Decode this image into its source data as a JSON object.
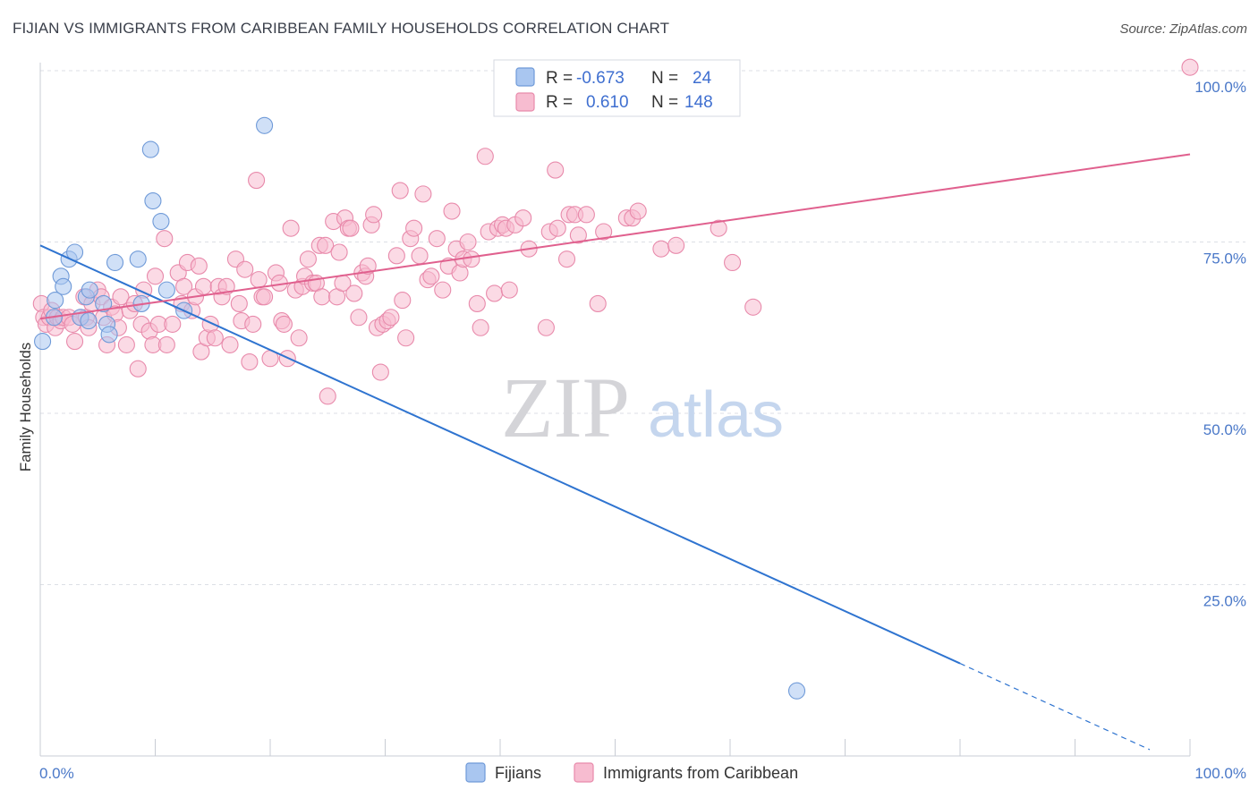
{
  "title": "FIJIAN VS IMMIGRANTS FROM CARIBBEAN FAMILY HOUSEHOLDS CORRELATION CHART",
  "source": "Source: ZipAtlas.com",
  "watermark": {
    "zip": "ZIP",
    "atlas": "atlas"
  },
  "legend_top": {
    "r_label": "R =",
    "n_label": "N =",
    "entries": [
      {
        "r": "-0.673",
        "n": "24",
        "color": "#a9c6f0"
      },
      {
        "r": "0.610",
        "n": "148",
        "color": "#f7bcd0"
      }
    ]
  },
  "chart_data": {
    "type": "scatter",
    "xlabel": "",
    "ylabel": "Family Households",
    "xlim": [
      0,
      100
    ],
    "ylim": [
      0,
      103
    ],
    "x_tick_labels": [
      "0.0%",
      "100.0%"
    ],
    "y_ticks": [
      25,
      50,
      75,
      100
    ],
    "y_tick_labels": [
      "25.0%",
      "50.0%",
      "75.0%",
      "100.0%"
    ],
    "grid": true,
    "legend_position": "bottom",
    "series": [
      {
        "name": "Fijians",
        "color": "#a9c6f0",
        "stroke": "#6f9ad8",
        "line_color": "#2f74d0",
        "trend": {
          "x0": 0,
          "y0": 74.5,
          "x1": 80,
          "y1": 13.5,
          "dash_to_x": 96.5
        },
        "points": [
          [
            0.2,
            60.5
          ],
          [
            1.2,
            64
          ],
          [
            1.3,
            66.5
          ],
          [
            1.8,
            70
          ],
          [
            2.0,
            68.5
          ],
          [
            2.5,
            72.5
          ],
          [
            3.0,
            73.5
          ],
          [
            3.5,
            64
          ],
          [
            4.0,
            67
          ],
          [
            4.2,
            63.5
          ],
          [
            4.3,
            68
          ],
          [
            5.5,
            66
          ],
          [
            5.8,
            63
          ],
          [
            6.0,
            61.5
          ],
          [
            6.5,
            72
          ],
          [
            8.5,
            72.5
          ],
          [
            8.8,
            66
          ],
          [
            9.6,
            88.5
          ],
          [
            9.8,
            81
          ],
          [
            10.5,
            78
          ],
          [
            11.0,
            68
          ],
          [
            12.5,
            65
          ],
          [
            19.5,
            92
          ],
          [
            65.8,
            9.5
          ]
        ]
      },
      {
        "name": "Immigrants from Caribbean",
        "color": "#f7bcd0",
        "stroke": "#e88aab",
        "line_color": "#e0608e",
        "trend": {
          "x0": 0,
          "y0": 63.8,
          "x1": 100,
          "y1": 87.8
        },
        "points": [
          [
            0.1,
            66
          ],
          [
            0.3,
            64
          ],
          [
            0.5,
            63
          ],
          [
            0.8,
            64
          ],
          [
            1.0,
            65
          ],
          [
            1.3,
            62.5
          ],
          [
            1.5,
            64
          ],
          [
            1.8,
            63.5
          ],
          [
            2.0,
            64
          ],
          [
            2.5,
            64
          ],
          [
            2.8,
            63
          ],
          [
            3.0,
            60.5
          ],
          [
            3.5,
            64
          ],
          [
            3.8,
            67
          ],
          [
            4.0,
            64
          ],
          [
            4.2,
            62.5
          ],
          [
            4.5,
            66
          ],
          [
            5.0,
            68
          ],
          [
            5.3,
            67
          ],
          [
            5.5,
            64
          ],
          [
            5.8,
            60
          ],
          [
            6.2,
            65.5
          ],
          [
            6.5,
            64.5
          ],
          [
            6.8,
            62.5
          ],
          [
            7.0,
            67
          ],
          [
            7.5,
            60
          ],
          [
            7.8,
            65
          ],
          [
            8.2,
            66
          ],
          [
            8.5,
            56.5
          ],
          [
            8.8,
            63
          ],
          [
            9.0,
            68
          ],
          [
            9.5,
            62
          ],
          [
            9.8,
            60
          ],
          [
            10.0,
            70
          ],
          [
            10.3,
            63
          ],
          [
            10.8,
            75.5
          ],
          [
            11.0,
            60
          ],
          [
            11.5,
            63
          ],
          [
            12.0,
            70.5
          ],
          [
            12.3,
            66
          ],
          [
            12.5,
            68.5
          ],
          [
            12.8,
            72
          ],
          [
            13.2,
            65
          ],
          [
            13.5,
            67
          ],
          [
            13.8,
            71.5
          ],
          [
            14.0,
            59
          ],
          [
            14.2,
            68.5
          ],
          [
            14.5,
            61
          ],
          [
            14.8,
            63
          ],
          [
            15.2,
            61
          ],
          [
            15.5,
            68.5
          ],
          [
            15.8,
            67
          ],
          [
            16.2,
            68.5
          ],
          [
            16.5,
            60
          ],
          [
            17.0,
            72.5
          ],
          [
            17.3,
            66
          ],
          [
            17.5,
            63.5
          ],
          [
            17.8,
            71
          ],
          [
            18.2,
            57.5
          ],
          [
            18.5,
            63
          ],
          [
            18.8,
            84
          ],
          [
            19.0,
            69.5
          ],
          [
            19.3,
            67
          ],
          [
            19.5,
            67
          ],
          [
            20.0,
            58
          ],
          [
            20.5,
            70.5
          ],
          [
            20.8,
            69
          ],
          [
            21.0,
            63.5
          ],
          [
            21.2,
            63
          ],
          [
            21.5,
            58
          ],
          [
            21.8,
            77
          ],
          [
            22.2,
            68
          ],
          [
            22.5,
            61
          ],
          [
            22.8,
            68.5
          ],
          [
            23.0,
            70
          ],
          [
            23.3,
            72.5
          ],
          [
            23.7,
            69
          ],
          [
            24.0,
            69
          ],
          [
            24.3,
            74.5
          ],
          [
            24.5,
            67
          ],
          [
            24.8,
            74.5
          ],
          [
            25.0,
            52.5
          ],
          [
            25.5,
            78
          ],
          [
            25.8,
            67
          ],
          [
            26.0,
            73.5
          ],
          [
            26.3,
            69
          ],
          [
            26.5,
            78.5
          ],
          [
            26.8,
            77
          ],
          [
            27.0,
            77
          ],
          [
            27.3,
            67.5
          ],
          [
            27.7,
            64
          ],
          [
            28.0,
            70.5
          ],
          [
            28.3,
            70
          ],
          [
            28.5,
            71.5
          ],
          [
            28.8,
            77.5
          ],
          [
            29.0,
            79
          ],
          [
            29.3,
            62.5
          ],
          [
            29.6,
            56
          ],
          [
            29.8,
            63
          ],
          [
            30.2,
            63.5
          ],
          [
            30.5,
            64
          ],
          [
            31.0,
            73
          ],
          [
            31.3,
            82.5
          ],
          [
            31.5,
            66.5
          ],
          [
            31.8,
            61
          ],
          [
            32.2,
            75.5
          ],
          [
            32.5,
            77
          ],
          [
            33.0,
            73
          ],
          [
            33.3,
            82
          ],
          [
            33.7,
            69.5
          ],
          [
            34.0,
            70
          ],
          [
            34.5,
            75.5
          ],
          [
            35.0,
            68
          ],
          [
            35.5,
            71.5
          ],
          [
            35.8,
            79.5
          ],
          [
            36.2,
            74
          ],
          [
            36.5,
            70.5
          ],
          [
            36.8,
            72.5
          ],
          [
            37.2,
            75
          ],
          [
            37.5,
            72.5
          ],
          [
            38.0,
            66
          ],
          [
            38.3,
            62.5
          ],
          [
            38.7,
            87.5
          ],
          [
            39.0,
            76.5
          ],
          [
            39.5,
            67.5
          ],
          [
            39.8,
            77
          ],
          [
            40.2,
            77.5
          ],
          [
            40.5,
            77
          ],
          [
            40.8,
            68
          ],
          [
            41.3,
            77.5
          ],
          [
            42.0,
            78.5
          ],
          [
            42.5,
            74
          ],
          [
            44.0,
            62.5
          ],
          [
            44.3,
            76.5
          ],
          [
            44.8,
            85.5
          ],
          [
            45.0,
            77
          ],
          [
            45.8,
            72.5
          ],
          [
            46.0,
            79
          ],
          [
            46.5,
            79
          ],
          [
            46.8,
            76
          ],
          [
            47.5,
            79
          ],
          [
            48.5,
            66
          ],
          [
            49.0,
            76.5
          ],
          [
            51.0,
            78.5
          ],
          [
            51.5,
            78.5
          ],
          [
            52.0,
            79.5
          ],
          [
            54.0,
            74
          ],
          [
            55.3,
            74.5
          ],
          [
            59.0,
            77
          ],
          [
            60.2,
            72
          ],
          [
            62.0,
            65.5
          ],
          [
            100.0,
            100.5
          ]
        ]
      }
    ]
  }
}
